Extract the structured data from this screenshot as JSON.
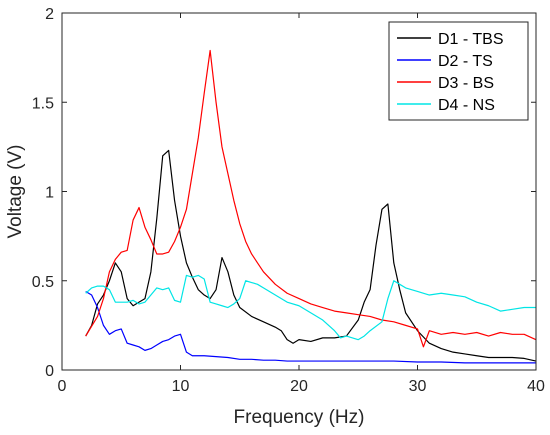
{
  "chart_data": {
    "type": "line",
    "xlabel": "Frequency (Hz)",
    "ylabel": "Voltage (V)",
    "xlim": [
      0,
      40
    ],
    "ylim": [
      0,
      2
    ],
    "xticks": [
      0,
      10,
      20,
      30,
      40
    ],
    "yticks": [
      0,
      0.5,
      1,
      1.5,
      2
    ],
    "ytick_labels": [
      "0",
      "0.5",
      "1",
      "1.5",
      "2"
    ],
    "grid": false,
    "legend_position": "top-right",
    "series": [
      {
        "name": "D1 - TBS",
        "color": "#000000",
        "points": [
          [
            2,
            0.19
          ],
          [
            2.5,
            0.25
          ],
          [
            3,
            0.37
          ],
          [
            3.5,
            0.42
          ],
          [
            4,
            0.5
          ],
          [
            4.5,
            0.6
          ],
          [
            5,
            0.55
          ],
          [
            5.5,
            0.4
          ],
          [
            6,
            0.36
          ],
          [
            6.5,
            0.38
          ],
          [
            7,
            0.4
          ],
          [
            7.5,
            0.55
          ],
          [
            8,
            0.85
          ],
          [
            8.5,
            1.2
          ],
          [
            9,
            1.23
          ],
          [
            9.5,
            0.95
          ],
          [
            10,
            0.75
          ],
          [
            10.5,
            0.6
          ],
          [
            11,
            0.52
          ],
          [
            11.5,
            0.45
          ],
          [
            12,
            0.42
          ],
          [
            12.5,
            0.4
          ],
          [
            13,
            0.45
          ],
          [
            13.5,
            0.63
          ],
          [
            14,
            0.55
          ],
          [
            14.5,
            0.42
          ],
          [
            15,
            0.35
          ],
          [
            16,
            0.3
          ],
          [
            17,
            0.27
          ],
          [
            18,
            0.24
          ],
          [
            18.5,
            0.22
          ],
          [
            19,
            0.17
          ],
          [
            19.5,
            0.15
          ],
          [
            20,
            0.17
          ],
          [
            21,
            0.16
          ],
          [
            22,
            0.18
          ],
          [
            23,
            0.18
          ],
          [
            24,
            0.19
          ],
          [
            25,
            0.28
          ],
          [
            25.5,
            0.38
          ],
          [
            26,
            0.45
          ],
          [
            26.5,
            0.7
          ],
          [
            27,
            0.9
          ],
          [
            27.5,
            0.93
          ],
          [
            28,
            0.6
          ],
          [
            28.5,
            0.45
          ],
          [
            29,
            0.32
          ],
          [
            30,
            0.22
          ],
          [
            31,
            0.15
          ],
          [
            32,
            0.12
          ],
          [
            33,
            0.1
          ],
          [
            34,
            0.09
          ],
          [
            35,
            0.08
          ],
          [
            36,
            0.07
          ],
          [
            37,
            0.07
          ],
          [
            38,
            0.07
          ],
          [
            39,
            0.065
          ],
          [
            40,
            0.05
          ]
        ]
      },
      {
        "name": "D2 - TS",
        "color": "#0000ff",
        "points": [
          [
            2,
            0.44
          ],
          [
            2.5,
            0.42
          ],
          [
            3,
            0.35
          ],
          [
            3.5,
            0.25
          ],
          [
            4,
            0.2
          ],
          [
            4.5,
            0.22
          ],
          [
            5,
            0.23
          ],
          [
            5.5,
            0.15
          ],
          [
            6,
            0.14
          ],
          [
            6.5,
            0.13
          ],
          [
            7,
            0.11
          ],
          [
            7.5,
            0.12
          ],
          [
            8,
            0.14
          ],
          [
            8.5,
            0.16
          ],
          [
            9,
            0.17
          ],
          [
            9.5,
            0.19
          ],
          [
            10,
            0.2
          ],
          [
            10.5,
            0.1
          ],
          [
            11,
            0.08
          ],
          [
            12,
            0.08
          ],
          [
            13,
            0.075
          ],
          [
            14,
            0.07
          ],
          [
            15,
            0.06
          ],
          [
            16,
            0.06
          ],
          [
            17,
            0.055
          ],
          [
            18,
            0.055
          ],
          [
            19,
            0.05
          ],
          [
            20,
            0.05
          ],
          [
            22,
            0.05
          ],
          [
            24,
            0.05
          ],
          [
            26,
            0.05
          ],
          [
            28,
            0.05
          ],
          [
            30,
            0.045
          ],
          [
            32,
            0.045
          ],
          [
            34,
            0.04
          ],
          [
            36,
            0.04
          ],
          [
            38,
            0.04
          ],
          [
            40,
            0.04
          ]
        ]
      },
      {
        "name": "D3 - BS",
        "color": "#ff0000",
        "points": [
          [
            2,
            0.19
          ],
          [
            3,
            0.3
          ],
          [
            3.5,
            0.4
          ],
          [
            4,
            0.55
          ],
          [
            4.5,
            0.62
          ],
          [
            5,
            0.66
          ],
          [
            5.5,
            0.67
          ],
          [
            6,
            0.84
          ],
          [
            6.5,
            0.91
          ],
          [
            7,
            0.8
          ],
          [
            7.5,
            0.73
          ],
          [
            8,
            0.65
          ],
          [
            8.5,
            0.65
          ],
          [
            9,
            0.66
          ],
          [
            9.5,
            0.72
          ],
          [
            10,
            0.8
          ],
          [
            10.5,
            0.9
          ],
          [
            11,
            1.1
          ],
          [
            11.5,
            1.3
          ],
          [
            12,
            1.55
          ],
          [
            12.5,
            1.79
          ],
          [
            13,
            1.5
          ],
          [
            13.5,
            1.25
          ],
          [
            14,
            1.1
          ],
          [
            14.5,
            0.95
          ],
          [
            15,
            0.82
          ],
          [
            15.5,
            0.72
          ],
          [
            16,
            0.65
          ],
          [
            16.5,
            0.6
          ],
          [
            17,
            0.55
          ],
          [
            18,
            0.48
          ],
          [
            19,
            0.43
          ],
          [
            20,
            0.4
          ],
          [
            21,
            0.37
          ],
          [
            22,
            0.35
          ],
          [
            23,
            0.33
          ],
          [
            24,
            0.32
          ],
          [
            25,
            0.31
          ],
          [
            26,
            0.3
          ],
          [
            27,
            0.28
          ],
          [
            28,
            0.27
          ],
          [
            29,
            0.25
          ],
          [
            30,
            0.23
          ],
          [
            30.5,
            0.13
          ],
          [
            31,
            0.22
          ],
          [
            32,
            0.2
          ],
          [
            33,
            0.21
          ],
          [
            34,
            0.2
          ],
          [
            35,
            0.21
          ],
          [
            36,
            0.19
          ],
          [
            37,
            0.21
          ],
          [
            38,
            0.2
          ],
          [
            39,
            0.2
          ],
          [
            40,
            0.17
          ]
        ]
      },
      {
        "name": "D4 - NS",
        "color": "#00e5e5",
        "points": [
          [
            2,
            0.43
          ],
          [
            2.5,
            0.46
          ],
          [
            3,
            0.47
          ],
          [
            3.5,
            0.47
          ],
          [
            4,
            0.45
          ],
          [
            4.5,
            0.38
          ],
          [
            5,
            0.38
          ],
          [
            5.5,
            0.38
          ],
          [
            6,
            0.39
          ],
          [
            6.5,
            0.37
          ],
          [
            7,
            0.38
          ],
          [
            7.5,
            0.42
          ],
          [
            8,
            0.46
          ],
          [
            8.5,
            0.45
          ],
          [
            9,
            0.46
          ],
          [
            9.5,
            0.39
          ],
          [
            10,
            0.38
          ],
          [
            10.5,
            0.53
          ],
          [
            11,
            0.52
          ],
          [
            11.5,
            0.53
          ],
          [
            12,
            0.51
          ],
          [
            12.5,
            0.38
          ],
          [
            13,
            0.37
          ],
          [
            13.5,
            0.36
          ],
          [
            14,
            0.35
          ],
          [
            14.5,
            0.37
          ],
          [
            15,
            0.4
          ],
          [
            15.5,
            0.5
          ],
          [
            16,
            0.49
          ],
          [
            16.5,
            0.48
          ],
          [
            17,
            0.46
          ],
          [
            18,
            0.42
          ],
          [
            19,
            0.38
          ],
          [
            20,
            0.36
          ],
          [
            21,
            0.32
          ],
          [
            22,
            0.28
          ],
          [
            23,
            0.22
          ],
          [
            23.5,
            0.18
          ],
          [
            24,
            0.19
          ],
          [
            25,
            0.17
          ],
          [
            25.5,
            0.19
          ],
          [
            26,
            0.22
          ],
          [
            27,
            0.27
          ],
          [
            27.5,
            0.4
          ],
          [
            28,
            0.5
          ],
          [
            28.5,
            0.48
          ],
          [
            29,
            0.46
          ],
          [
            30,
            0.44
          ],
          [
            31,
            0.42
          ],
          [
            32,
            0.43
          ],
          [
            33,
            0.42
          ],
          [
            34,
            0.41
          ],
          [
            35,
            0.38
          ],
          [
            36,
            0.36
          ],
          [
            37,
            0.33
          ],
          [
            38,
            0.34
          ],
          [
            39,
            0.35
          ],
          [
            40,
            0.35
          ]
        ]
      }
    ]
  }
}
